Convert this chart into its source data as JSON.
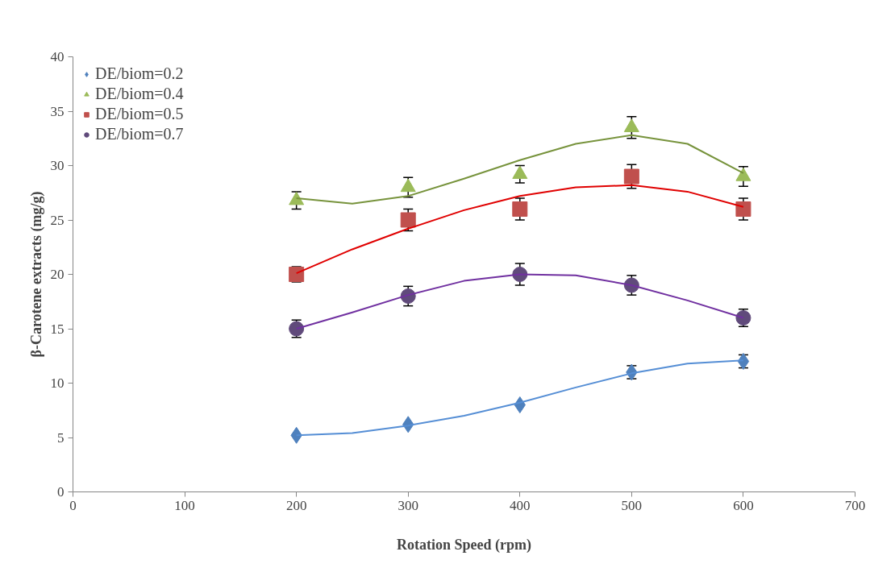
{
  "chart_data": {
    "type": "scatter",
    "xlabel": "Rotation Speed (rpm)",
    "ylabel": "β-Carotene extracts (mg/g)",
    "xlim": [
      0,
      700
    ],
    "xticks": [
      0,
      100,
      200,
      300,
      400,
      500,
      600,
      700
    ],
    "ylim": [
      0,
      40
    ],
    "yticks": [
      0,
      5,
      10,
      15,
      20,
      25,
      30,
      35,
      40
    ],
    "grid": false,
    "legend": "top left",
    "series": [
      {
        "name": "DE/biom=0.2",
        "marker": "diamond",
        "color": "#4f81bd",
        "x": [
          200,
          300,
          400,
          500,
          600
        ],
        "values": [
          5.2,
          6.2,
          8,
          11,
          12
        ],
        "errors": [
          null,
          null,
          null,
          0.6,
          0.6
        ]
      },
      {
        "name": "DE/biom=0.4",
        "marker": "triangle",
        "color": "#9bbb59",
        "x": [
          200,
          300,
          400,
          500,
          600
        ],
        "values": [
          26.8,
          28,
          29.2,
          33.5,
          29
        ],
        "errors": [
          0.8,
          0.9,
          0.8,
          1,
          0.9
        ]
      },
      {
        "name": "DE/biom=0.5",
        "marker": "square",
        "color": "#c0504d",
        "x": [
          200,
          300,
          400,
          500,
          600
        ],
        "values": [
          20,
          25,
          26,
          29,
          26
        ],
        "errors": [
          0.7,
          1,
          1,
          1.1,
          1
        ]
      },
      {
        "name": "DE/biom=0.7",
        "marker": "circle",
        "color": "#604a7b",
        "x": [
          200,
          300,
          400,
          500,
          600
        ],
        "values": [
          15,
          18,
          20,
          19,
          16
        ],
        "errors": [
          0.8,
          0.9,
          1,
          0.9,
          0.8
        ]
      },
      {
        "type": "line",
        "color": "#558ed5",
        "x": [
          200,
          250,
          300,
          350,
          400,
          450,
          500,
          550,
          600
        ],
        "values": [
          5.2,
          5.4,
          6.1,
          7.0,
          8.2,
          9.6,
          10.9,
          11.8,
          12.1
        ]
      },
      {
        "type": "line",
        "color": "#77933c",
        "x": [
          200,
          250,
          300,
          350,
          400,
          450,
          500,
          550,
          600
        ],
        "values": [
          27,
          26.5,
          27.2,
          28.8,
          30.5,
          32,
          32.8,
          32,
          29.3
        ]
      },
      {
        "type": "line",
        "color": "#e00000",
        "x": [
          200,
          250,
          300,
          350,
          400,
          450,
          500,
          550,
          600
        ],
        "values": [
          20.1,
          22.3,
          24.2,
          25.9,
          27.2,
          28,
          28.2,
          27.6,
          26.2
        ]
      },
      {
        "type": "line",
        "color": "#7030a0",
        "x": [
          200,
          250,
          300,
          350,
          400,
          450,
          500,
          550,
          600
        ],
        "values": [
          15,
          16.5,
          18.1,
          19.4,
          20,
          19.9,
          19,
          17.6,
          16
        ]
      }
    ]
  }
}
